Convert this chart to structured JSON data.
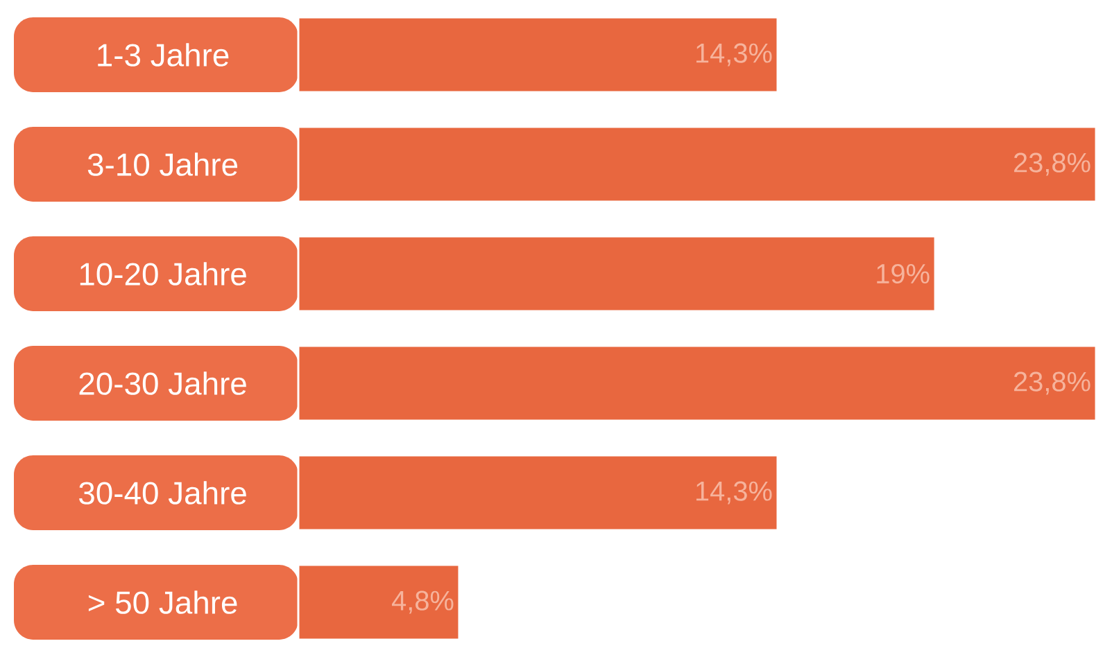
{
  "chart_data": {
    "type": "bar",
    "orientation": "horizontal",
    "categories": [
      "1-3 Jahre",
      "3-10 Jahre",
      "10-20 Jahre",
      "20-30 Jahre",
      "30-40 Jahre",
      "> 50 Jahre"
    ],
    "values": [
      14.3,
      23.8,
      19,
      23.8,
      14.3,
      4.8
    ],
    "value_labels": [
      "14,3%",
      "23,8%",
      "19%",
      "23,8%",
      "14,3%",
      "4,8%"
    ],
    "color": "#e8673f"
  }
}
